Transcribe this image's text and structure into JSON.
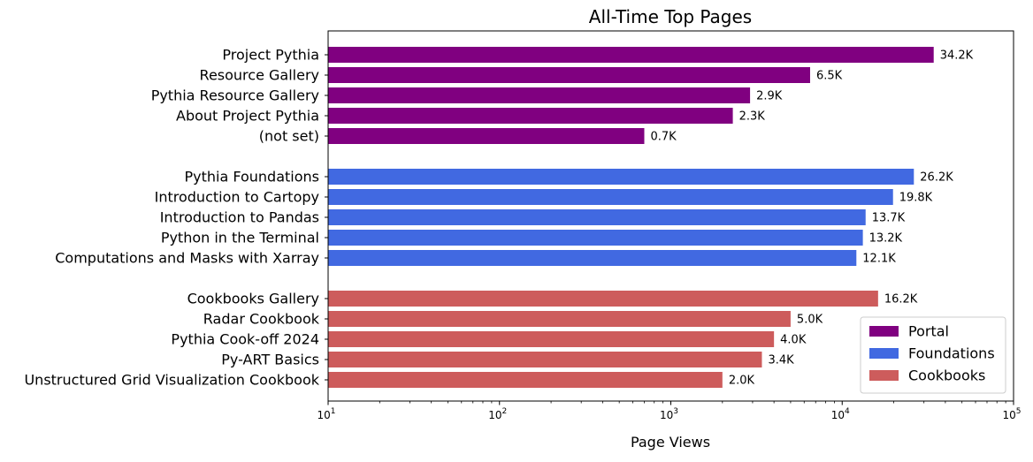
{
  "chart_data": {
    "type": "bar",
    "orientation": "horizontal",
    "title": "All-Time Top Pages",
    "xlabel": "Page Views",
    "ylabel": "",
    "xscale": "log",
    "xlim": [
      10,
      100000
    ],
    "xticks": [
      {
        "value": 10,
        "base": "10",
        "exp": "1"
      },
      {
        "value": 100,
        "base": "10",
        "exp": "2"
      },
      {
        "value": 1000,
        "base": "10",
        "exp": "3"
      },
      {
        "value": 10000,
        "base": "10",
        "exp": "4"
      },
      {
        "value": 100000,
        "base": "10",
        "exp": "5"
      }
    ],
    "grid": false,
    "legend_position": "bottom-right",
    "groups": [
      {
        "name": "Portal",
        "color": "#800080",
        "bars": [
          {
            "label": "Project Pythia",
            "value": 34200,
            "text": "34.2K"
          },
          {
            "label": "Resource Gallery",
            "value": 6500,
            "text": "6.5K"
          },
          {
            "label": "Pythia Resource Gallery",
            "value": 2900,
            "text": "2.9K"
          },
          {
            "label": "About Project Pythia",
            "value": 2300,
            "text": "2.3K"
          },
          {
            "label": "(not set)",
            "value": 700,
            "text": "0.7K"
          }
        ]
      },
      {
        "name": "Foundations",
        "color": "#4169E1",
        "bars": [
          {
            "label": "Pythia Foundations",
            "value": 26200,
            "text": "26.2K"
          },
          {
            "label": "Introduction to Cartopy",
            "value": 19800,
            "text": "19.8K"
          },
          {
            "label": "Introduction to Pandas",
            "value": 13700,
            "text": "13.7K"
          },
          {
            "label": "Python in the Terminal",
            "value": 13200,
            "text": "13.2K"
          },
          {
            "label": "Computations and Masks with Xarray",
            "value": 12100,
            "text": "12.1K"
          }
        ]
      },
      {
        "name": "Cookbooks",
        "color": "#CD5C5C",
        "bars": [
          {
            "label": "Cookbooks Gallery",
            "value": 16200,
            "text": "16.2K"
          },
          {
            "label": "Radar Cookbook",
            "value": 5000,
            "text": "5.0K"
          },
          {
            "label": "Pythia Cook-off 2024",
            "value": 4000,
            "text": "4.0K"
          },
          {
            "label": "Py-ART Basics",
            "value": 3400,
            "text": "3.4K"
          },
          {
            "label": "Unstructured Grid Visualization Cookbook",
            "value": 2000,
            "text": "2.0K"
          }
        ]
      }
    ]
  }
}
